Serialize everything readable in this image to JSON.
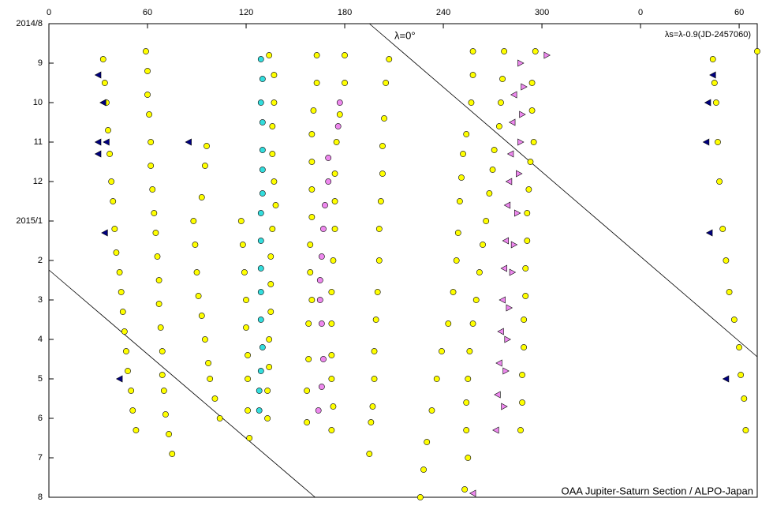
{
  "chart_data": {
    "type": "scatter",
    "annotation": "λs=λ-0.9(JD-2457060)",
    "reference_label": "λ=0°",
    "credit": "OAA Jupiter-Saturn Section / ALPO-Japan",
    "xlim": [
      0,
      431
    ],
    "xticks": [
      0,
      60,
      120,
      180,
      240,
      300,
      {
        "value": 360,
        "label": "0"
      },
      {
        "value": 420,
        "label": "60"
      }
    ],
    "ylim": [
      0,
      12
    ],
    "yticks": [
      {
        "value": 0,
        "label": "2014/8"
      },
      {
        "value": 1,
        "label": "9"
      },
      {
        "value": 2,
        "label": "10"
      },
      {
        "value": 3,
        "label": "11"
      },
      {
        "value": 4,
        "label": "12"
      },
      {
        "value": 5,
        "label": "2015/1"
      },
      {
        "value": 6,
        "label": "2"
      },
      {
        "value": 7,
        "label": "3"
      },
      {
        "value": 8,
        "label": "4"
      },
      {
        "value": 9,
        "label": "5"
      },
      {
        "value": 10,
        "label": "6"
      },
      {
        "value": 11,
        "label": "7"
      },
      {
        "value": 12,
        "label": "8"
      }
    ],
    "reference_lines": [
      {
        "x": [
          195,
          431
        ],
        "y": [
          0,
          8.44
        ]
      },
      {
        "x": [
          0,
          162
        ],
        "y": [
          6.24,
          12
        ]
      }
    ],
    "series": [
      {
        "marker": "circle",
        "color": "#ffff00",
        "x": [
          33,
          34,
          35,
          36,
          37,
          38,
          39,
          40,
          41,
          43,
          44,
          45,
          46,
          47,
          48,
          50,
          51,
          53
        ],
        "y": [
          0.9,
          1.5,
          2.0,
          2.7,
          3.3,
          4.0,
          4.5,
          5.2,
          5.8,
          6.3,
          6.8,
          7.3,
          7.8,
          8.3,
          8.8,
          9.3,
          9.8,
          10.3
        ]
      },
      {
        "marker": "circle",
        "color": "#ffff00",
        "x": [
          59,
          60,
          60,
          61,
          62,
          62,
          63,
          64,
          65,
          66,
          67,
          67,
          68,
          69,
          69,
          70,
          71,
          73,
          75
        ],
        "y": [
          0.7,
          1.2,
          1.8,
          2.3,
          3.0,
          3.6,
          4.2,
          4.8,
          5.3,
          5.9,
          6.5,
          7.1,
          7.7,
          8.3,
          8.9,
          9.3,
          9.9,
          10.4,
          10.9
        ]
      },
      {
        "marker": "circle",
        "color": "#ffff00",
        "x": [
          96,
          95,
          93,
          88,
          89,
          90,
          91,
          93,
          95,
          97,
          98,
          101,
          104
        ],
        "y": [
          3.1,
          3.6,
          4.4,
          5.0,
          5.6,
          6.3,
          6.9,
          7.4,
          8.0,
          8.6,
          9.0,
          9.5,
          10.0
        ]
      },
      {
        "marker": "circle",
        "color": "#ffff00",
        "x": [
          117,
          118,
          119,
          120,
          120,
          121,
          121,
          121,
          122
        ],
        "y": [
          5.0,
          5.6,
          6.3,
          7.0,
          7.7,
          8.4,
          9.0,
          9.8,
          10.5
        ]
      },
      {
        "marker": "circle",
        "color": "#33dddd",
        "x": [
          129,
          130,
          129,
          130,
          130,
          130,
          130,
          129,
          129,
          129,
          129,
          129,
          130,
          129,
          128,
          128
        ],
        "y": [
          0.9,
          1.4,
          2.0,
          2.5,
          3.2,
          3.7,
          4.3,
          4.8,
          5.5,
          6.2,
          6.8,
          7.5,
          8.2,
          8.8,
          9.3,
          9.8
        ]
      },
      {
        "marker": "circle",
        "color": "#ffff00",
        "x": [
          134,
          137,
          137,
          136,
          136,
          137,
          138,
          136,
          135,
          135,
          135,
          134,
          134,
          133,
          133
        ],
        "y": [
          0.8,
          1.3,
          2.0,
          2.6,
          3.3,
          4.0,
          4.6,
          5.2,
          5.9,
          6.6,
          7.3,
          8.0,
          8.7,
          9.3,
          10.0
        ]
      },
      {
        "marker": "circle",
        "color": "#ffff00",
        "x": [
          163,
          163,
          161,
          160,
          160,
          160,
          160,
          159,
          159,
          160,
          158,
          158,
          157,
          157
        ],
        "y": [
          0.8,
          1.5,
          2.2,
          2.8,
          3.5,
          4.2,
          4.9,
          5.6,
          6.3,
          7.0,
          7.6,
          8.5,
          9.3,
          10.1
        ]
      },
      {
        "marker": "circle",
        "color": "#ee88ee",
        "x": [
          177,
          176,
          170,
          170,
          168,
          167,
          166,
          165,
          165,
          166,
          167,
          166,
          164
        ],
        "y": [
          2.0,
          2.6,
          3.4,
          4.0,
          4.6,
          5.2,
          5.9,
          6.5,
          7.0,
          7.6,
          8.5,
          9.2,
          9.8
        ]
      },
      {
        "marker": "circle",
        "color": "#ffff00",
        "x": [
          180,
          180,
          177,
          175,
          174,
          174,
          174,
          173,
          172,
          172,
          172,
          172,
          173,
          172
        ],
        "y": [
          0.8,
          1.5,
          2.3,
          3.0,
          3.8,
          4.5,
          5.2,
          6.0,
          6.8,
          7.6,
          8.4,
          9.0,
          9.7,
          10.3
        ]
      },
      {
        "marker": "circle",
        "color": "#ffff00",
        "x": [
          207,
          205,
          204,
          203,
          203,
          202,
          201,
          201,
          200,
          199,
          198,
          198,
          197,
          196,
          195
        ],
        "y": [
          0.9,
          1.5,
          2.4,
          3.1,
          3.8,
          4.5,
          5.2,
          6.0,
          6.8,
          7.5,
          8.3,
          9.0,
          9.7,
          10.1,
          10.9
        ]
      },
      {
        "marker": "circle",
        "color": "#ffff00",
        "x": [
          258,
          258,
          257,
          254,
          252,
          251,
          250,
          249,
          248,
          246,
          243,
          239,
          236,
          233,
          230,
          228,
          226
        ],
        "y": [
          0.7,
          1.3,
          2.0,
          2.8,
          3.3,
          3.9,
          4.5,
          5.3,
          6.0,
          6.8,
          7.6,
          8.3,
          9.0,
          9.8,
          10.6,
          11.3,
          12.0
        ]
      },
      {
        "marker": "circle",
        "color": "#ffff00",
        "x": [
          277,
          276,
          275,
          274,
          271,
          270,
          268,
          266,
          264,
          262,
          260,
          258,
          256,
          255,
          254,
          254,
          255,
          253
        ],
        "y": [
          0.7,
          1.4,
          2.0,
          2.6,
          3.2,
          3.7,
          4.3,
          5.0,
          5.6,
          6.3,
          7.0,
          7.6,
          8.3,
          9.0,
          9.6,
          10.3,
          11.0,
          11.8
        ]
      },
      {
        "marker": "circle",
        "color": "#ffff00",
        "x": [
          296,
          294,
          294,
          295,
          293,
          292,
          291,
          291,
          290,
          290,
          289,
          289,
          288,
          288,
          287
        ],
        "y": [
          0.7,
          1.5,
          2.2,
          3.0,
          3.5,
          4.2,
          4.8,
          5.5,
          6.2,
          6.9,
          7.5,
          8.2,
          8.9,
          9.6,
          10.3
        ]
      },
      {
        "marker": "circle",
        "color": "#ffff00",
        "x": [
          404,
          405,
          406,
          407,
          408,
          410,
          412,
          414,
          417,
          420,
          421,
          423,
          424,
          431
        ],
        "y": [
          0.9,
          1.5,
          2.0,
          3.0,
          4.0,
          5.2,
          6.0,
          6.8,
          7.5,
          8.2,
          8.9,
          9.5,
          10.3,
          0.7
        ]
      },
      {
        "marker": "triangle-left",
        "color": "#ee88ee",
        "x": [
          283,
          282,
          281,
          280,
          279,
          278,
          277,
          276,
          275,
          274,
          273,
          272,
          258
        ],
        "y": [
          1.8,
          2.5,
          3.3,
          4.0,
          4.6,
          5.5,
          6.2,
          7.0,
          7.8,
          8.6,
          9.4,
          10.3,
          11.9
        ]
      },
      {
        "marker": "triangle-right",
        "color": "#ee88ee",
        "x": [
          287,
          289,
          288,
          287,
          286,
          285,
          283,
          282,
          280,
          279,
          278,
          277,
          303
        ],
        "y": [
          1.0,
          1.6,
          2.3,
          3.0,
          3.8,
          4.8,
          5.6,
          6.3,
          7.2,
          8.0,
          8.8,
          9.7,
          0.8
        ]
      },
      {
        "marker": "triangle-left",
        "color": "#000080",
        "x": [
          30,
          33,
          30,
          35,
          30,
          34,
          43,
          85,
          404,
          401,
          400,
          402,
          412
        ],
        "y": [
          1.3,
          2.0,
          3.0,
          3.0,
          3.3,
          5.3,
          9.0,
          3.0,
          1.3,
          2.0,
          3.0,
          5.3,
          9.0
        ]
      }
    ]
  }
}
